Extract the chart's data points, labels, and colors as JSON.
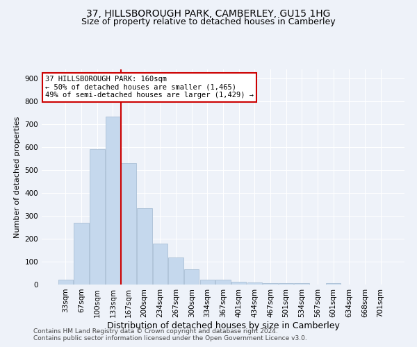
{
  "title": "37, HILLSBOROUGH PARK, CAMBERLEY, GU15 1HG",
  "subtitle": "Size of property relative to detached houses in Camberley",
  "xlabel": "Distribution of detached houses by size in Camberley",
  "ylabel": "Number of detached properties",
  "categories": [
    "33sqm",
    "67sqm",
    "100sqm",
    "133sqm",
    "167sqm",
    "200sqm",
    "234sqm",
    "267sqm",
    "300sqm",
    "334sqm",
    "367sqm",
    "401sqm",
    "434sqm",
    "467sqm",
    "501sqm",
    "534sqm",
    "567sqm",
    "601sqm",
    "634sqm",
    "668sqm",
    "701sqm"
  ],
  "values": [
    20,
    270,
    590,
    735,
    530,
    335,
    178,
    118,
    68,
    22,
    20,
    12,
    8,
    7,
    6,
    5,
    0,
    5,
    0,
    0,
    0
  ],
  "bar_color": "#c5d8ed",
  "bar_edge_color": "#a0b8d0",
  "vline_color": "#cc0000",
  "vline_x_index": 4,
  "annotation_text": "37 HILLSBOROUGH PARK: 160sqm\n← 50% of detached houses are smaller (1,465)\n49% of semi-detached houses are larger (1,429) →",
  "annotation_box_color": "#ffffff",
  "annotation_box_edge": "#cc0000",
  "ylim": [
    0,
    940
  ],
  "yticks": [
    0,
    100,
    200,
    300,
    400,
    500,
    600,
    700,
    800,
    900
  ],
  "footer_line1": "Contains HM Land Registry data © Crown copyright and database right 2024.",
  "footer_line2": "Contains public sector information licensed under the Open Government Licence v3.0.",
  "background_color": "#eef2f9",
  "plot_bg_color": "#eef2f9",
  "title_fontsize": 10,
  "subtitle_fontsize": 9,
  "xlabel_fontsize": 9,
  "ylabel_fontsize": 8,
  "tick_fontsize": 7.5,
  "footer_fontsize": 6.5,
  "annotation_fontsize": 7.5
}
